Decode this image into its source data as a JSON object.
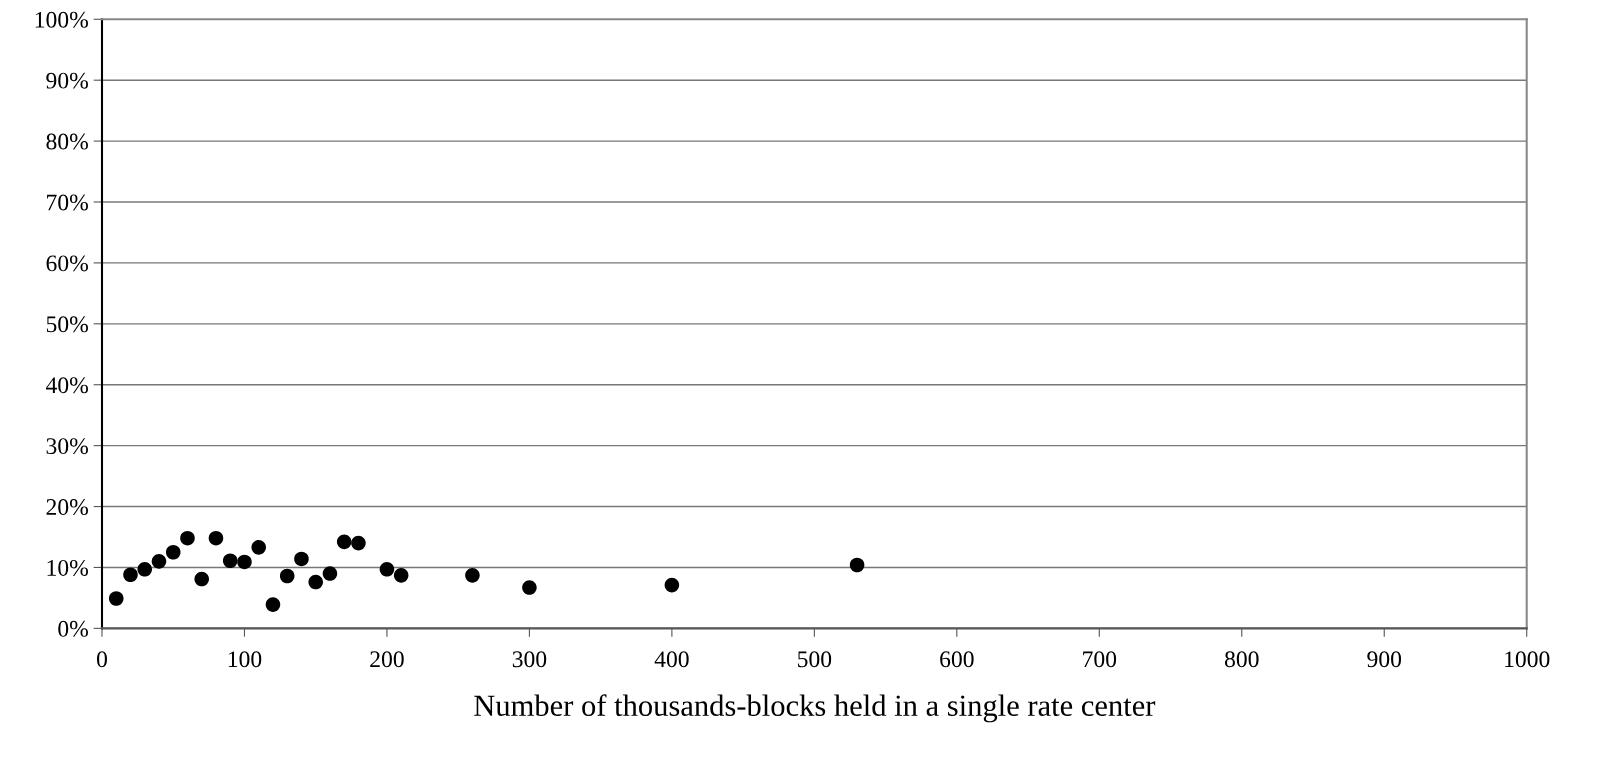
{
  "chart_data": {
    "type": "scatter",
    "xlabel": "Number of thousands-blocks held in a single rate center",
    "x": [
      10,
      20,
      30,
      40,
      50,
      60,
      70,
      80,
      90,
      100,
      110,
      120,
      130,
      140,
      150,
      160,
      170,
      180,
      200,
      210,
      260,
      300,
      400,
      530
    ],
    "values": [
      4.9,
      8.8,
      9.7,
      11.0,
      12.5,
      14.8,
      8.1,
      14.8,
      11.1,
      10.9,
      13.3,
      3.9,
      8.6,
      11.4,
      7.6,
      9.0,
      14.2,
      14.0,
      9.7,
      8.7,
      8.7,
      6.7,
      7.1,
      10.4
    ],
    "color": "#000000",
    "marker": "circle",
    "xlim": [
      0,
      1000
    ],
    "xticks": [
      0,
      100,
      200,
      300,
      400,
      500,
      600,
      700,
      800,
      900,
      1000
    ],
    "ylim": [
      0,
      100
    ],
    "yticks": [
      {
        "value": 0,
        "label": "0%"
      },
      {
        "value": 10,
        "label": "10%"
      },
      {
        "value": 20,
        "label": "20%"
      },
      {
        "value": 30,
        "label": "30%"
      },
      {
        "value": 40,
        "label": "40%"
      },
      {
        "value": 50,
        "label": "50%"
      },
      {
        "value": 60,
        "label": "60%"
      },
      {
        "value": 70,
        "label": "70%"
      },
      {
        "value": 80,
        "label": "80%"
      },
      {
        "value": 90,
        "label": "90%"
      },
      {
        "value": 100,
        "label": "100%"
      }
    ],
    "grid": "y",
    "legend": false
  }
}
